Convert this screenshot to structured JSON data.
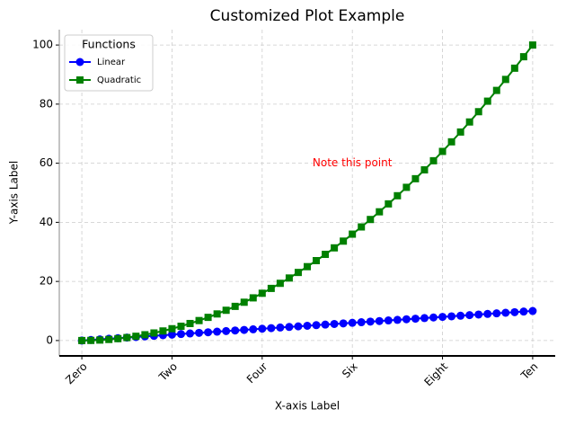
{
  "chart_data": {
    "type": "line",
    "title": "Customized Plot Example",
    "xlabel": "X-axis Label",
    "ylabel": "Y-axis Label",
    "x": [
      0,
      0.2,
      0.4,
      0.6,
      0.8,
      1,
      1.2,
      1.4,
      1.6,
      1.8,
      2,
      2.2,
      2.4,
      2.6,
      2.8,
      3,
      3.2,
      3.4,
      3.6,
      3.8,
      4,
      4.2,
      4.4,
      4.6,
      4.8,
      5,
      5.2,
      5.4,
      5.6,
      5.8,
      6,
      6.2,
      6.4,
      6.6,
      6.8,
      7,
      7.2,
      7.4,
      7.6,
      7.8,
      8,
      8.2,
      8.4,
      8.6,
      8.8,
      9,
      9.2,
      9.4,
      9.6,
      9.8,
      10
    ],
    "series": [
      {
        "name": "Linear",
        "color": "#0000ff",
        "marker": "circle",
        "values": [
          0,
          0.2,
          0.4,
          0.6,
          0.8,
          1,
          1.2,
          1.4,
          1.6,
          1.8,
          2,
          2.2,
          2.4,
          2.6,
          2.8,
          3,
          3.2,
          3.4,
          3.6,
          3.8,
          4,
          4.2,
          4.4,
          4.6,
          4.8,
          5,
          5.2,
          5.4,
          5.6,
          5.8,
          6,
          6.2,
          6.4,
          6.6,
          6.8,
          7,
          7.2,
          7.4,
          7.6,
          7.8,
          8,
          8.2,
          8.4,
          8.6,
          8.8,
          9,
          9.2,
          9.4,
          9.6,
          9.8,
          10
        ]
      },
      {
        "name": "Quadratic",
        "color": "#008000",
        "marker": "square",
        "values": [
          0,
          0.04,
          0.16,
          0.36,
          0.64,
          1,
          1.44,
          1.96,
          2.56,
          3.24,
          4,
          4.84,
          5.76,
          6.76,
          7.84,
          9,
          10.24,
          11.56,
          12.96,
          14.44,
          16,
          17.64,
          19.36,
          21.16,
          23.04,
          25,
          27.04,
          29.16,
          31.36,
          33.64,
          36,
          38.44,
          40.96,
          43.56,
          46.24,
          49,
          51.84,
          54.76,
          57.76,
          60.84,
          64,
          67.24,
          70.56,
          73.96,
          77.44,
          81,
          84.64,
          88.36,
          92.16,
          96.04,
          100
        ]
      }
    ],
    "xlim": [
      -0.5,
      10.5
    ],
    "ylim": [
      -5.2,
      105.2
    ],
    "xticks": [
      {
        "value": 0,
        "label": "Zero"
      },
      {
        "value": 2,
        "label": "Two"
      },
      {
        "value": 4,
        "label": "Four"
      },
      {
        "value": 6,
        "label": "Six"
      },
      {
        "value": 8,
        "label": "Eight"
      },
      {
        "value": 10,
        "label": "Ten"
      }
    ],
    "yticks": [
      0,
      20,
      40,
      60,
      80,
      100
    ],
    "grid": true,
    "legend_title": "Functions",
    "legend_loc": "upper left",
    "annotation": {
      "text": "Note this point",
      "x": 6,
      "y": 60,
      "color": "#ff0000"
    }
  }
}
